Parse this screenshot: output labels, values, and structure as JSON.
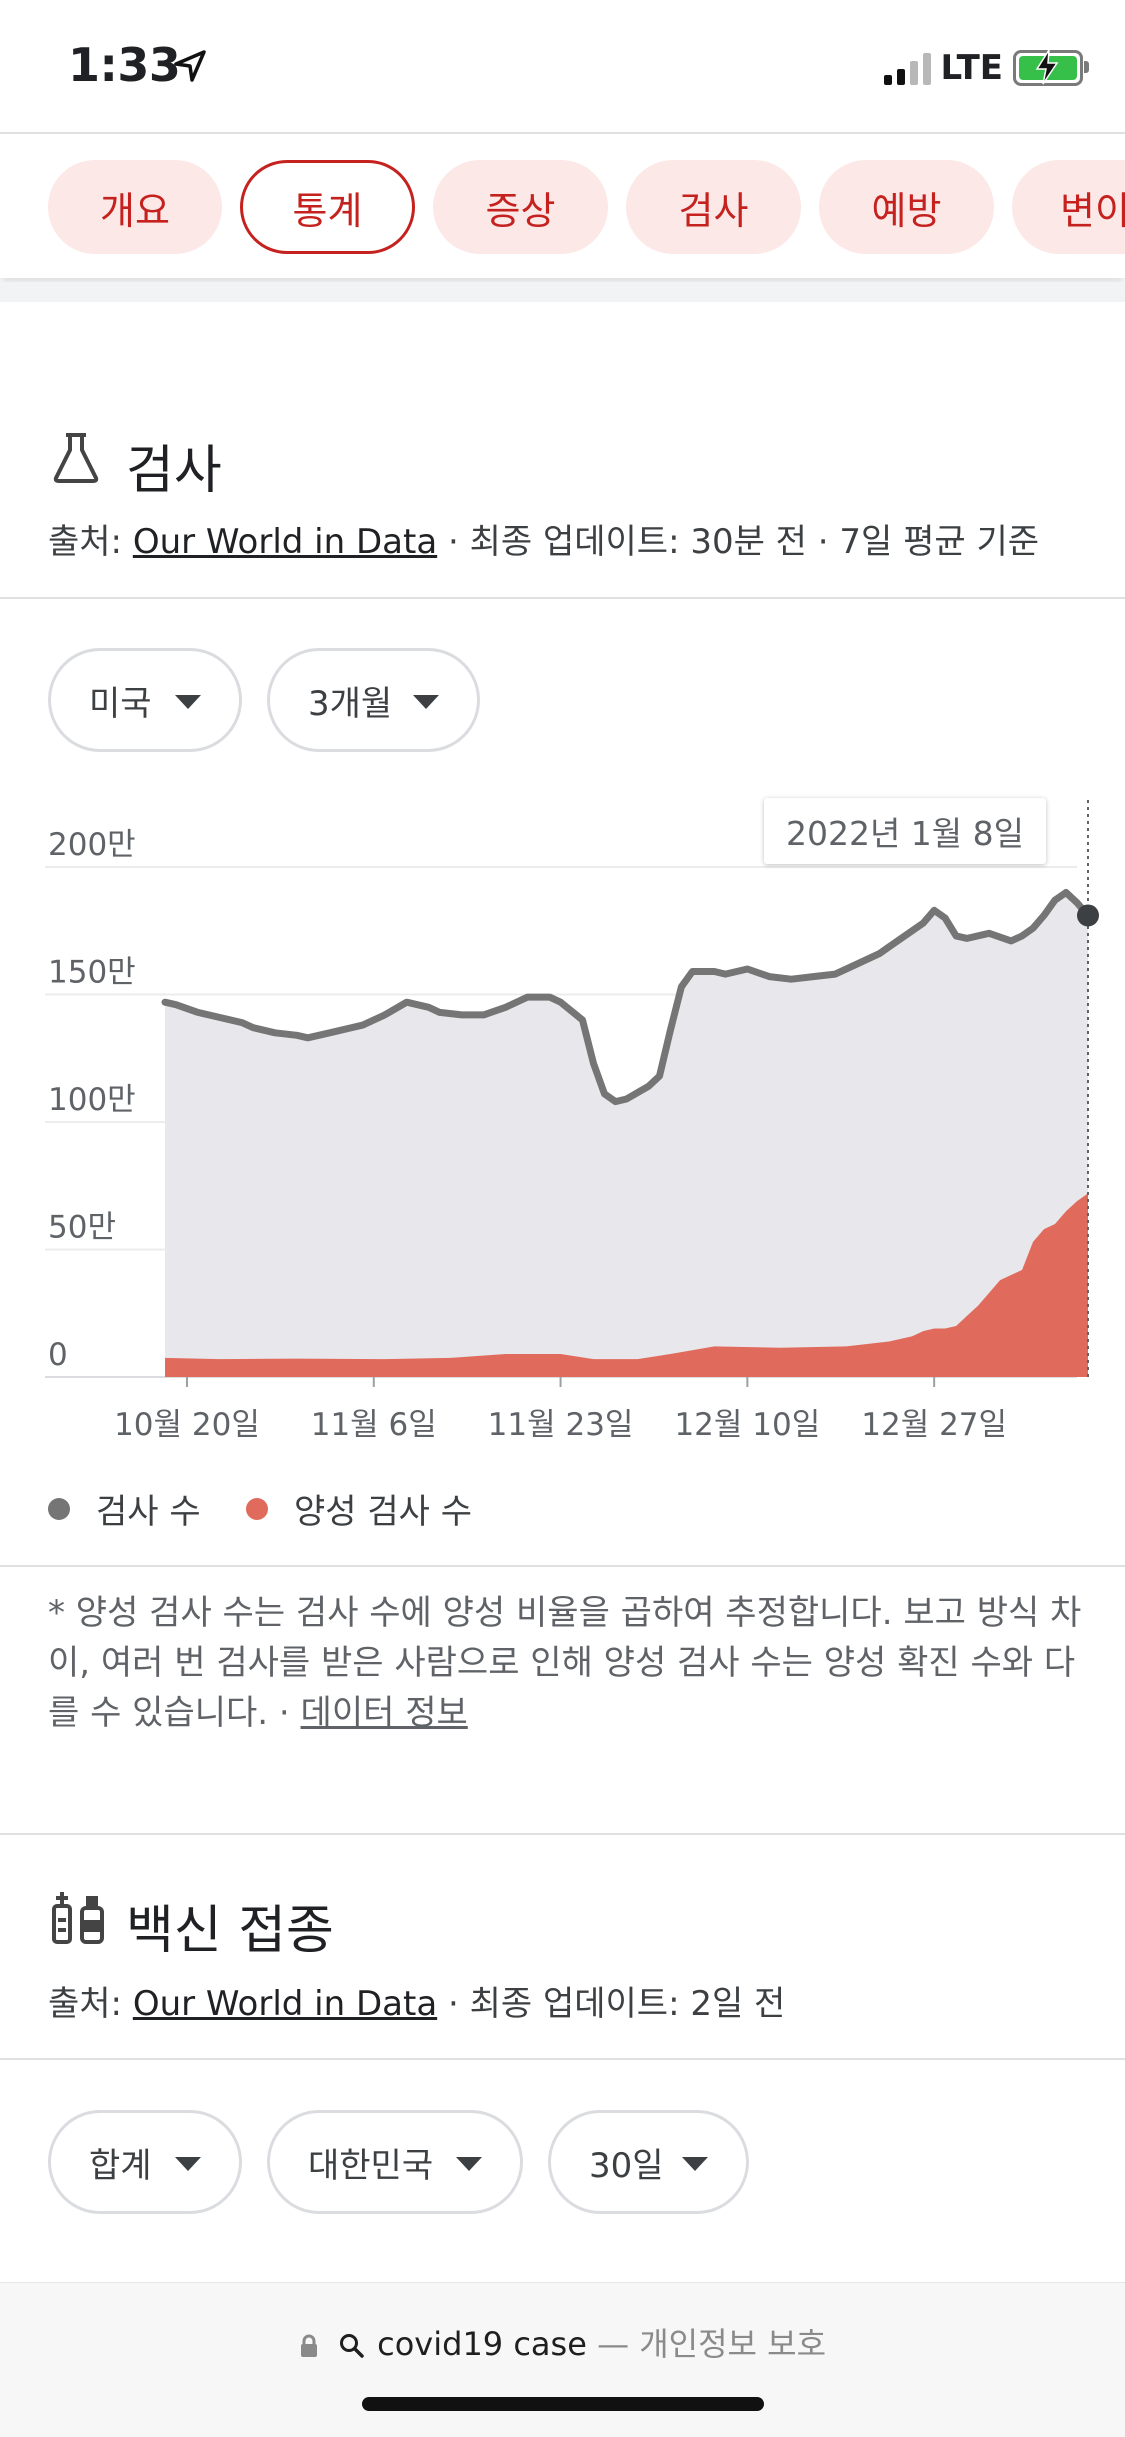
{
  "status": {
    "time": "1:33",
    "network": "LTE"
  },
  "tabs": [
    "개요",
    "통계",
    "증상",
    "검사",
    "예방",
    "변이"
  ],
  "tabs_active_index": 1,
  "testing": {
    "title": "검사",
    "source_prefix": "출처: ",
    "source_link": "Our World in Data",
    "source_suffix": " · 최종 업데이트: 30분 전 · 7일 평균 기준",
    "filters": [
      "미국",
      "3개월"
    ],
    "tooltip_date": "2022년 1월 8일",
    "legend": [
      "검사 수",
      "양성 검사 수"
    ],
    "note": "* 양성 검사 수는 검사 수에 양성 비율을 곱하여 추정합니다. 보고 방식 차이, 여러 번 검사를 받은 사람으로 인해 양성 검사 수는 양성 확진 수와 다를 수 있습니다.",
    "note_sep": " · ",
    "note_link": "데이터 정보"
  },
  "vaccination": {
    "title": "백신 접종",
    "source_prefix": "출처: ",
    "source_link": "Our World in Data",
    "source_suffix": " · 최종 업데이트: 2일 전",
    "filters": [
      "합계",
      "대한민국",
      "30일"
    ]
  },
  "browser": {
    "url": "covid19 case",
    "privacy": " — 개인정보 보호"
  },
  "colors": {
    "tests": "#757575",
    "positive": "#e06b5c",
    "accent": "#c5221f"
  },
  "chart_data": {
    "type": "area",
    "y_tick_labels": [
      "0",
      "50만",
      "100만",
      "150만",
      "200만"
    ],
    "y_ticks": [
      0,
      500000,
      1000000,
      1500000,
      2000000
    ],
    "ylim": [
      0,
      2000000
    ],
    "x_tick_labels": [
      "10월 20일",
      "11월 6일",
      "11월 23일",
      "12월 10일",
      "12월 27일"
    ],
    "x_tick_days": [
      2,
      19,
      36,
      53,
      70
    ],
    "x_range_days": [
      0,
      83
    ],
    "grid": true,
    "series": [
      {
        "name": "검사 수",
        "points": [
          [
            0,
            1470000
          ],
          [
            1,
            1460000
          ],
          [
            3,
            1430000
          ],
          [
            5,
            1410000
          ],
          [
            7,
            1390000
          ],
          [
            8,
            1370000
          ],
          [
            10,
            1350000
          ],
          [
            12,
            1340000
          ],
          [
            13,
            1330000
          ],
          [
            15,
            1350000
          ],
          [
            17,
            1370000
          ],
          [
            18,
            1380000
          ],
          [
            20,
            1420000
          ],
          [
            22,
            1470000
          ],
          [
            24,
            1450000
          ],
          [
            25,
            1430000
          ],
          [
            27,
            1420000
          ],
          [
            29,
            1420000
          ],
          [
            31,
            1450000
          ],
          [
            33,
            1490000
          ],
          [
            35,
            1490000
          ],
          [
            36,
            1470000
          ],
          [
            38,
            1400000
          ],
          [
            39,
            1230000
          ],
          [
            40,
            1110000
          ],
          [
            41,
            1080000
          ],
          [
            42,
            1090000
          ],
          [
            44,
            1140000
          ],
          [
            45,
            1180000
          ],
          [
            46,
            1360000
          ],
          [
            47,
            1530000
          ],
          [
            48,
            1590000
          ],
          [
            50,
            1590000
          ],
          [
            51,
            1580000
          ],
          [
            53,
            1600000
          ],
          [
            55,
            1570000
          ],
          [
            57,
            1560000
          ],
          [
            59,
            1570000
          ],
          [
            61,
            1580000
          ],
          [
            63,
            1620000
          ],
          [
            65,
            1660000
          ],
          [
            67,
            1720000
          ],
          [
            69,
            1780000
          ],
          [
            70,
            1830000
          ],
          [
            71,
            1800000
          ],
          [
            72,
            1730000
          ],
          [
            73,
            1720000
          ],
          [
            75,
            1740000
          ],
          [
            77,
            1710000
          ],
          [
            78,
            1730000
          ],
          [
            79,
            1760000
          ],
          [
            80,
            1810000
          ],
          [
            81,
            1870000
          ],
          [
            82,
            1900000
          ],
          [
            83,
            1860000
          ],
          [
            84,
            1810000
          ]
        ]
      },
      {
        "name": "양성 검사 수",
        "points": [
          [
            0,
            75000
          ],
          [
            5,
            70000
          ],
          [
            12,
            72000
          ],
          [
            20,
            70000
          ],
          [
            26,
            75000
          ],
          [
            31,
            90000
          ],
          [
            36,
            90000
          ],
          [
            39,
            70000
          ],
          [
            43,
            70000
          ],
          [
            46,
            90000
          ],
          [
            50,
            120000
          ],
          [
            56,
            115000
          ],
          [
            62,
            120000
          ],
          [
            66,
            140000
          ],
          [
            68,
            160000
          ],
          [
            69,
            180000
          ],
          [
            70,
            190000
          ],
          [
            71,
            190000
          ],
          [
            72,
            200000
          ],
          [
            73,
            240000
          ],
          [
            74,
            280000
          ],
          [
            75,
            330000
          ],
          [
            76,
            380000
          ],
          [
            77,
            400000
          ],
          [
            78,
            420000
          ],
          [
            79,
            530000
          ],
          [
            80,
            580000
          ],
          [
            81,
            600000
          ],
          [
            82,
            650000
          ],
          [
            83,
            690000
          ],
          [
            84,
            720000
          ]
        ]
      }
    ]
  }
}
